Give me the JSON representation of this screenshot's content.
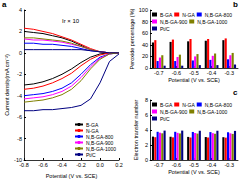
{
  "chart_data": [
    {
      "type": "line",
      "title": "a",
      "x_label": "Potential (V vs. SCE)",
      "y_label": "Current density(mA cm⁻²)",
      "annotations": [
        "Ir × 10"
      ],
      "x": [
        -0.8,
        -0.7,
        -0.6,
        -0.5,
        -0.4,
        -0.3,
        -0.2,
        -0.1,
        0.0,
        0.1,
        0.2
      ],
      "xlim": [
        -0.8,
        0.2
      ],
      "xticks": [
        -0.8,
        -0.6,
        -0.4,
        -0.2,
        {
          "value": 0,
          "label": "0.0"
        },
        0.2
      ],
      "ylim": [
        -10,
        4
      ],
      "yticks": [
        -10,
        -8,
        -6,
        -4,
        -2,
        0,
        2,
        4
      ],
      "grid": false,
      "legend": "lower right",
      "series": [
        {
          "name": "B-GA",
          "color": "#000000",
          "values": [
            -3.0,
            -2.9,
            -2.7,
            -2.4,
            -2.0,
            -1.5,
            -0.9,
            -0.4,
            -0.1,
            0,
            0
          ]
        },
        {
          "name": "B-GA",
          "color": "#000000",
          "values": [
            2.0,
            1.9,
            1.8,
            1.6,
            1.4,
            1.1,
            0.7,
            0.3,
            0.1,
            0,
            0
          ]
        },
        {
          "name": "N-GA",
          "color": "#ff0000",
          "values": [
            -3.4,
            -3.3,
            -3.1,
            -2.8,
            -2.4,
            -1.9,
            -1.2,
            -0.6,
            -0.2,
            0,
            0
          ]
        },
        {
          "name": "N-GA",
          "color": "#ff0000",
          "values": [
            2.3,
            2.2,
            2.0,
            1.8,
            1.5,
            1.2,
            0.8,
            0.4,
            0.1,
            0,
            0
          ]
        },
        {
          "name": "N,B-GA-800",
          "color": "#0000ff",
          "values": [
            -4.0,
            -3.9,
            -3.8,
            -3.6,
            -3.3,
            -2.8,
            -2.0,
            -1.1,
            -0.4,
            -0.1,
            0
          ]
        },
        {
          "name": "N,B-GA-800",
          "color": "#0000ff",
          "values": [
            0.9,
            0.9,
            0.8,
            0.8,
            0.7,
            0.6,
            0.4,
            0.2,
            0.1,
            0,
            0
          ]
        },
        {
          "name": "N,B-GA-900",
          "color": "#ff00ff",
          "values": [
            -4.3,
            -4.2,
            -4.1,
            -3.9,
            -3.6,
            -3.1,
            -2.3,
            -1.3,
            -0.5,
            -0.1,
            0
          ]
        },
        {
          "name": "N,B-GA-900",
          "color": "#ff00ff",
          "values": [
            1.3,
            1.2,
            1.2,
            1.1,
            1.0,
            0.8,
            0.6,
            0.3,
            0.1,
            0,
            0
          ]
        },
        {
          "name": "N,B-GA-1000",
          "color": "#808000",
          "values": [
            -4.6,
            -4.5,
            -4.4,
            -4.2,
            -3.9,
            -3.4,
            -2.6,
            -1.5,
            -0.6,
            -0.1,
            0
          ]
        },
        {
          "name": "N,B-GA-1000",
          "color": "#808000",
          "values": [
            1.4,
            1.4,
            1.3,
            1.2,
            1.1,
            0.9,
            0.6,
            0.3,
            0.1,
            0,
            0
          ]
        },
        {
          "name": "Pt/C",
          "color": "#000080",
          "values": [
            -5.4,
            -5.4,
            -5.3,
            -5.3,
            -5.2,
            -5.1,
            -4.9,
            -4.3,
            -2.8,
            -0.8,
            -0.1
          ]
        },
        {
          "name": "Pt/C",
          "color": "#000080",
          "values": [
            0.3,
            0.3,
            0.3,
            0.3,
            0.3,
            0.3,
            0.3,
            0.2,
            0.1,
            0,
            0
          ]
        }
      ]
    },
    {
      "type": "bar",
      "title": "b",
      "x_label": "Potential (V vs. SCE)",
      "y_label": "Peroxide percentage (%)",
      "categories": [
        "-0.7",
        "-0.6",
        "-0.5",
        "-0.4",
        "-0.3"
      ],
      "ylim": [
        0,
        100
      ],
      "yticks": [
        0,
        20,
        40,
        60,
        80,
        100
      ],
      "grid": false,
      "legend": "upper left",
      "series": [
        {
          "name": "B-GA",
          "color": "#000000",
          "values": [
            44,
            45,
            46,
            47,
            48
          ]
        },
        {
          "name": "N-GA",
          "color": "#ff0000",
          "values": [
            48,
            49,
            50,
            50,
            51
          ]
        },
        {
          "name": "N,B-GA-800",
          "color": "#0000ff",
          "values": [
            12,
            12,
            13,
            14,
            15
          ]
        },
        {
          "name": "N,B-GA-900",
          "color": "#ff00ff",
          "values": [
            18,
            19,
            20,
            21,
            22
          ]
        },
        {
          "name": "N,B-GA-1000",
          "color": "#808000",
          "values": [
            22,
            23,
            24,
            25,
            26
          ]
        },
        {
          "name": "Pt/C",
          "color": "#000080",
          "values": [
            4,
            4,
            5,
            5,
            6
          ]
        }
      ]
    },
    {
      "type": "bar",
      "title": "c",
      "x_label": "Potential (V vs. SCE)",
      "y_label": "Electron transfer number",
      "categories": [
        "-0.7",
        "-0.6",
        "-0.5",
        "-0.4",
        "-0.3"
      ],
      "ylim": [
        0,
        8
      ],
      "yticks": [
        0,
        2,
        4,
        6,
        8
      ],
      "grid": false,
      "legend": "upper left",
      "series": [
        {
          "name": "B-GA",
          "color": "#000000",
          "values": [
            3.12,
            3.1,
            3.08,
            3.06,
            3.04
          ]
        },
        {
          "name": "N-GA",
          "color": "#ff0000",
          "values": [
            3.04,
            3.02,
            3.0,
            3.0,
            2.98
          ]
        },
        {
          "name": "N,B-GA-800",
          "color": "#0000ff",
          "values": [
            3.76,
            3.76,
            3.74,
            3.72,
            3.7
          ]
        },
        {
          "name": "N,B-GA-900",
          "color": "#ff00ff",
          "values": [
            3.64,
            3.62,
            3.6,
            3.58,
            3.56
          ]
        },
        {
          "name": "N,B-GA-1000",
          "color": "#808000",
          "values": [
            3.56,
            3.54,
            3.52,
            3.5,
            3.48
          ]
        },
        {
          "name": "Pt/C",
          "color": "#000080",
          "values": [
            3.92,
            3.92,
            3.9,
            3.9,
            3.88
          ]
        }
      ]
    }
  ]
}
